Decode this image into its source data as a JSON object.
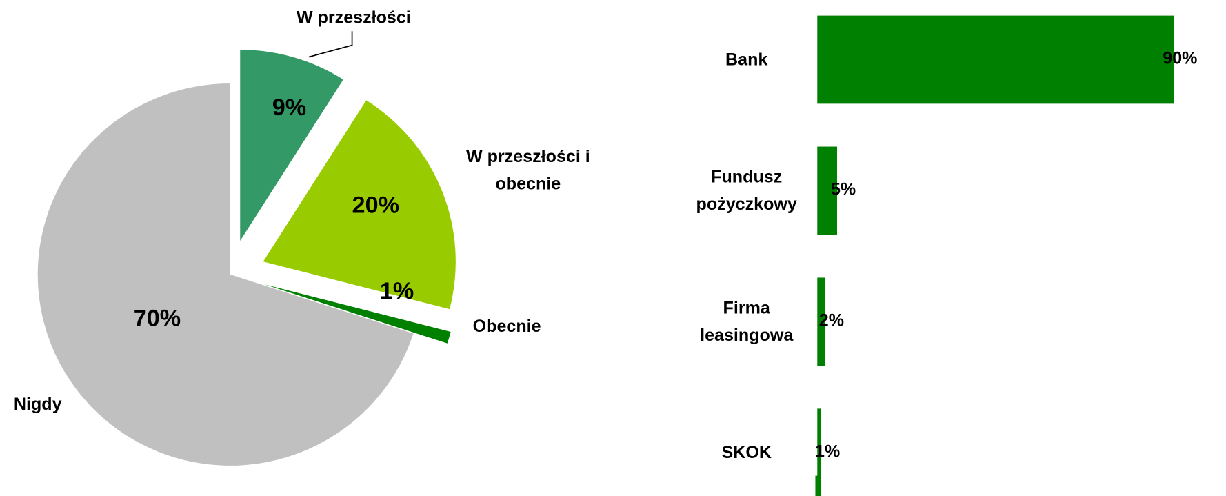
{
  "chart_data": [
    {
      "type": "pie",
      "categories": [
        "W przeszłości",
        "W przeszłości i obecnie",
        "Obecnie",
        "Nigdy"
      ],
      "values": [
        9,
        20,
        1,
        70
      ],
      "value_labels": [
        "9%",
        "20%",
        "1%",
        "70%"
      ],
      "colors": [
        "#339966",
        "#99cc00",
        "#008000",
        "#c0c0c0"
      ]
    },
    {
      "type": "hbar",
      "categories": [
        "Bank",
        "Fundusz pożyczkowy",
        "Firma leasingowa",
        "SKOK"
      ],
      "values": [
        90,
        5,
        2,
        1
      ],
      "value_labels": [
        "90%",
        "5%",
        "2%",
        "1%"
      ],
      "color": "#008000",
      "xlim": [
        0,
        100
      ]
    }
  ]
}
